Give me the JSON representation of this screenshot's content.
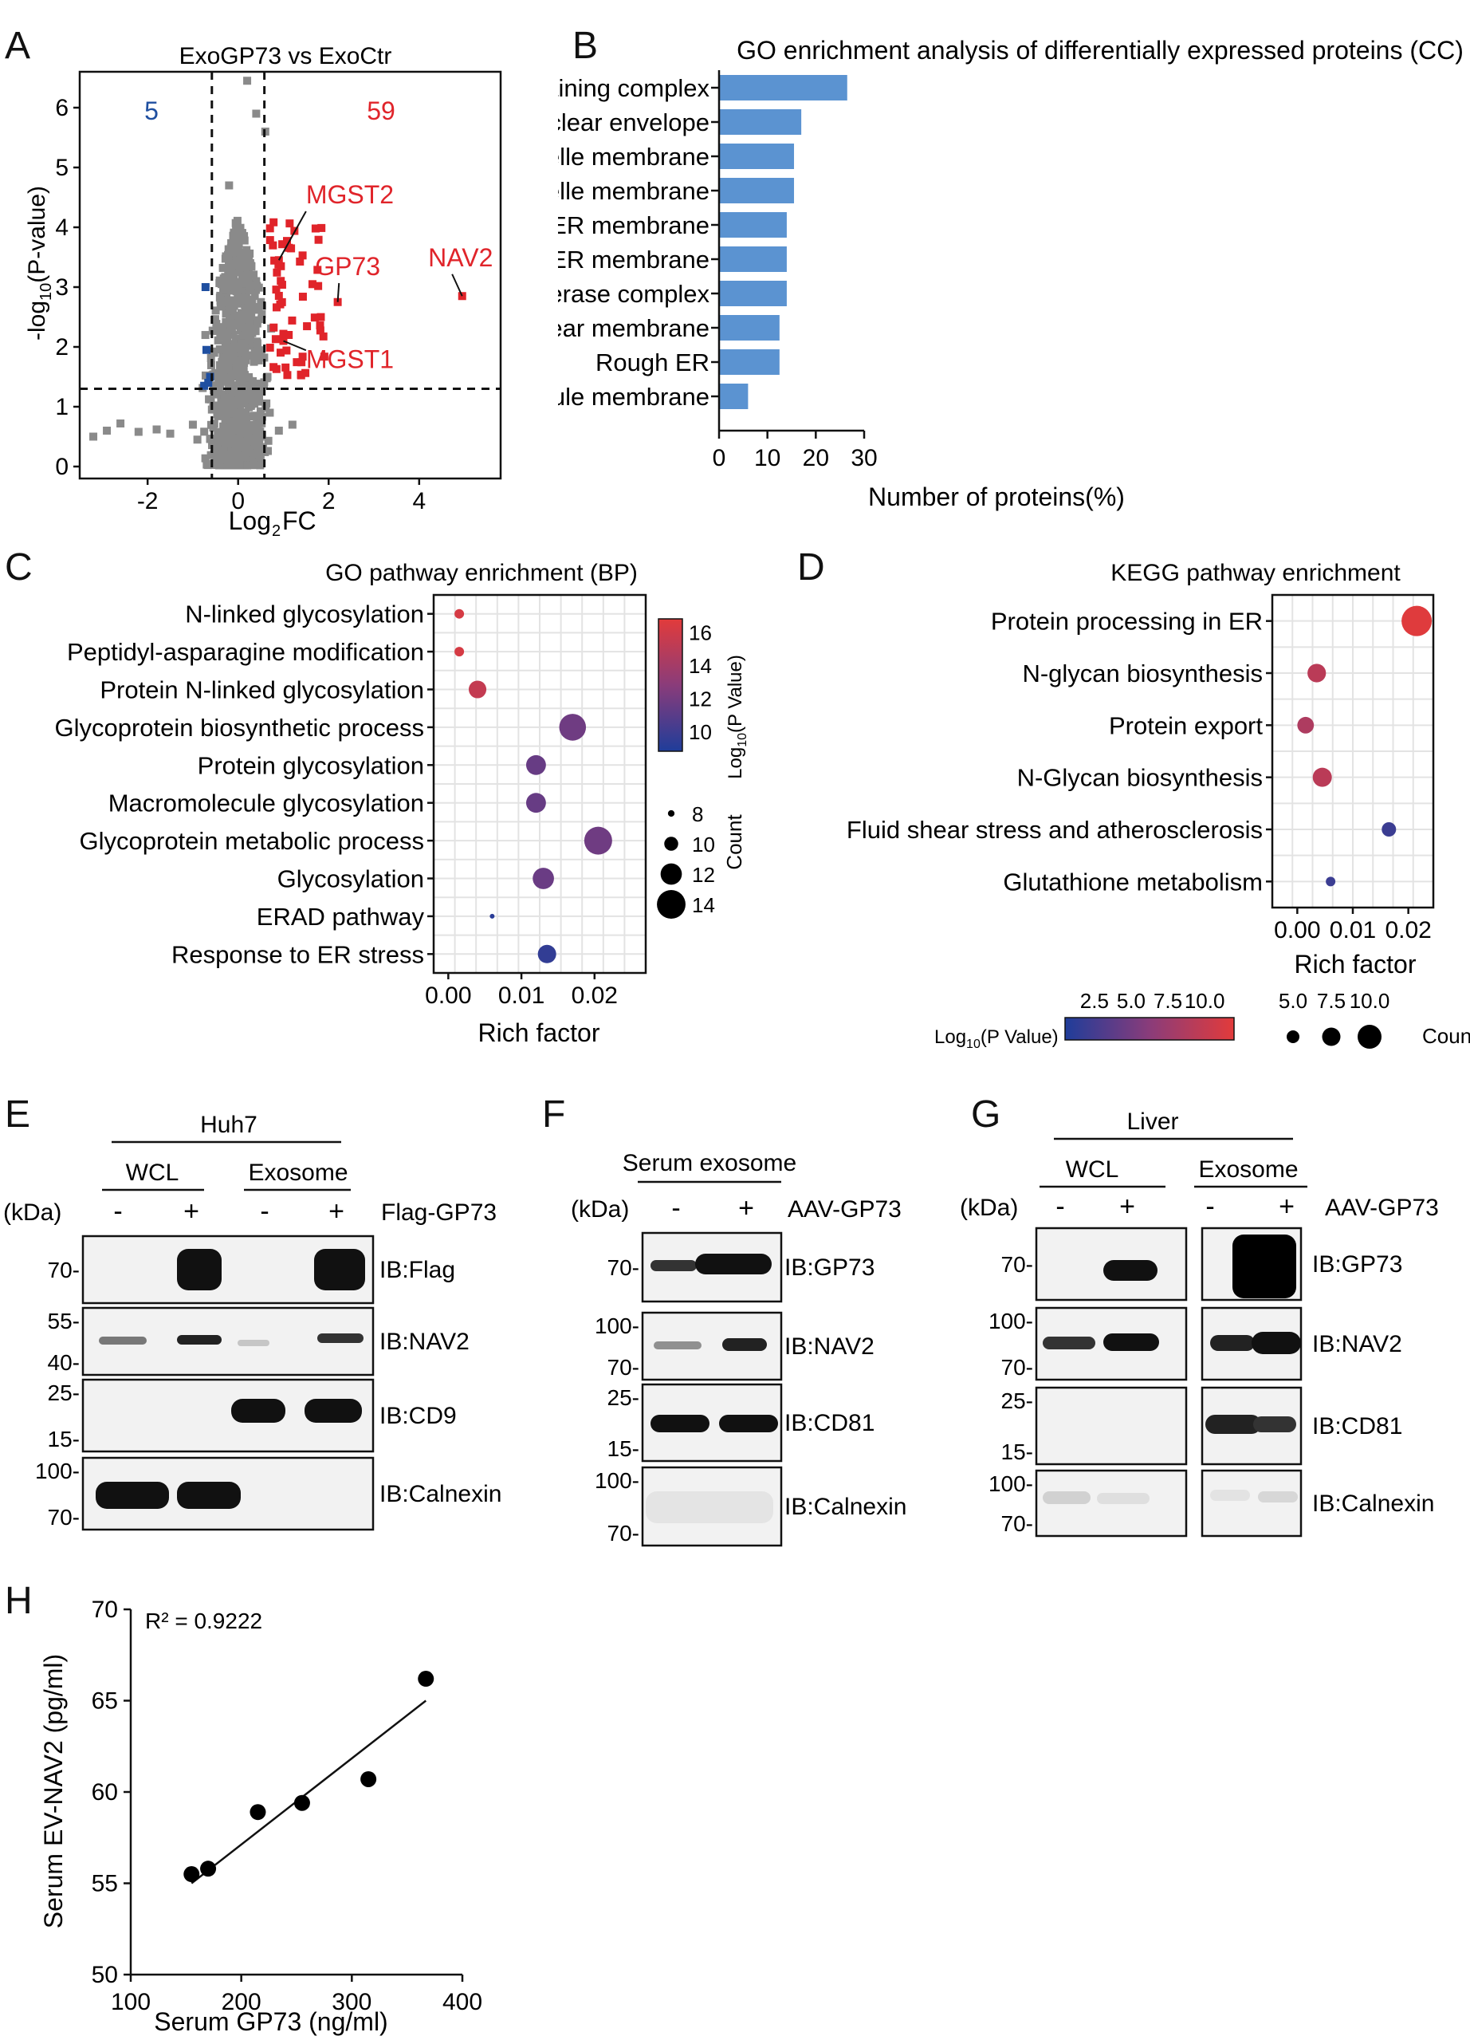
{
  "panel_labels": [
    "A",
    "B",
    "C",
    "D",
    "E",
    "F",
    "G",
    "H"
  ],
  "colors": {
    "red": "#e0242a",
    "blue": "#1f4fa0",
    "gray": "#8a8a8a",
    "bar": "#5b93d1",
    "grad_low": "#1f3d9a",
    "grad_mid": "#8a3c7a",
    "grad_high": "#e23b3b"
  },
  "chart_data": [
    {
      "id": "A",
      "type": "scatter",
      "title": "ExoGP73 vs ExoCtr",
      "xlabel_main": "Log",
      "xlabel_sub": "2",
      "xlabel_tail": "FC",
      "ylabel_pre": "-log",
      "ylabel_sub": "10",
      "ylabel_post": "(P-value)",
      "xlim": [
        -3.5,
        5.8
      ],
      "ylim": [
        -0.2,
        6.6
      ],
      "xticks": [
        "-2",
        "0",
        "2",
        "4"
      ],
      "yticks": [
        "0",
        "1",
        "2",
        "3",
        "4",
        "5",
        "6"
      ],
      "count_down": "5",
      "count_up": "59",
      "fc_threshold": [
        -0.58,
        0.58
      ],
      "p_threshold": 1.3,
      "labels": [
        {
          "text": "MGST2",
          "x": 0.9,
          "y": 3.45,
          "tx": 1.5,
          "ty": 4.4
        },
        {
          "text": "GP73",
          "x": 2.2,
          "y": 2.75,
          "tx": 1.7,
          "ty": 3.2
        },
        {
          "text": "NAV2",
          "x": 4.95,
          "y": 2.85,
          "tx": 4.2,
          "ty": 3.35
        },
        {
          "text": "MGST1",
          "x": 1.0,
          "y": 2.1,
          "tx": 1.5,
          "ty": 1.65
        }
      ]
    },
    {
      "id": "B",
      "type": "bar",
      "title": "GO enrichment analysis of differentially expressed proteins (CC)",
      "xlabel": "Number of proteins(%)",
      "xticks": [
        "0",
        "10",
        "20",
        "30"
      ],
      "xlim": [
        0,
        30
      ],
      "categories": [
        "ER protein-containing complex",
        "Nuclear envelope",
        "Integral component of organelle membrane",
        "Intrinsic component of organelle membrane",
        "Integral component of ER membrane",
        "intrinsic component of ER membrane",
        "Oligosaccharyltransferase complex",
        "Nuclear membrane",
        "Rough ER",
        "Azurophil granule membrane"
      ],
      "values": [
        26.5,
        17.0,
        15.5,
        15.5,
        14.0,
        14.0,
        14.0,
        12.5,
        12.5,
        6.0
      ]
    },
    {
      "id": "C",
      "type": "scatter",
      "title": "GO pathway enrichment (BP)",
      "xlabel": "Rich factor",
      "xticks": [
        "0.00",
        "0.01",
        "0.02"
      ],
      "xlim": [
        -0.002,
        0.027
      ],
      "categories": [
        "N-linked glycosylation",
        "Peptidyl-asparagine modification",
        "Protein N-linked glycosylation",
        "Glycoprotein biosynthetic process",
        "Protein glycosylation",
        "Macromolecule glycosylation",
        "Glycoprotein metabolic process",
        "Glycosylation",
        "ERAD pathway",
        "Response to ER stress"
      ],
      "x": [
        0.0015,
        0.0015,
        0.004,
        0.017,
        0.012,
        0.012,
        0.0205,
        0.013,
        0.006,
        0.0135
      ],
      "count": [
        8.8,
        8.8,
        11,
        13.5,
        11.6,
        11.6,
        13.8,
        12,
        7.5,
        11.2
      ],
      "logp": [
        16.2,
        16.2,
        15.4,
        11.8,
        11.5,
        11.5,
        11.8,
        11.6,
        9.2,
        9.5
      ],
      "colorbar_label": "Log10(P Value)",
      "colorbar_ticks": [
        "16",
        "14",
        "12",
        "10"
      ],
      "colorbar_range": [
        8.8,
        16.8
      ],
      "size_label": "Count",
      "size_ticks": [
        "8",
        "10",
        "12",
        "14"
      ]
    },
    {
      "id": "D",
      "type": "scatter",
      "title": "KEGG pathway enrichment",
      "xlabel": "Rich factor",
      "xticks": [
        "0.00",
        "0.01",
        "0.02"
      ],
      "xlim": [
        -0.0045,
        0.0245
      ],
      "categories": [
        "Protein processing in ER",
        "N-glycan biosynthesis",
        "Protein export",
        "N-Glycan biosynthesis",
        "Fluid shear stress and atherosclerosis",
        "Glutathione metabolism"
      ],
      "x": [
        0.0215,
        0.0035,
        0.0015,
        0.0045,
        0.0165,
        0.006
      ],
      "count": [
        11.5,
        7.8,
        7.2,
        8,
        6.5,
        5
      ],
      "logp": [
        11.8,
        9.4,
        8.6,
        9.4,
        2.0,
        2.0
      ],
      "colorbar_label": "Log10(P Value)",
      "colorbar_ticks": [
        "2.5",
        "5.0",
        "7.5",
        "10.0"
      ],
      "colorbar_range": [
        0.5,
        12.0
      ],
      "size_label": "Count",
      "size_ticks": [
        "5.0",
        "7.5",
        "10.0"
      ]
    },
    {
      "id": "H",
      "type": "scatter",
      "r2_text": "R² = 0.9222",
      "xlabel": "Serum GP73 (ng/ml)",
      "ylabel": "Serum EV-NAV2 (pg/ml)",
      "xlim": [
        100,
        400
      ],
      "ylim": [
        50,
        70
      ],
      "xticks": [
        "100",
        "200",
        "300",
        "400"
      ],
      "yticks": [
        "50",
        "55",
        "60",
        "65",
        "70"
      ],
      "x": [
        155,
        170,
        215,
        255,
        315,
        367
      ],
      "y": [
        55.5,
        55.8,
        58.9,
        59.4,
        60.7,
        66.2
      ],
      "fit": {
        "x": [
          155,
          367
        ],
        "y": [
          55.0,
          65.0
        ]
      }
    }
  ],
  "blots": {
    "E": {
      "group": "Huh7",
      "sub1": "WCL",
      "sub2": "Exosome",
      "kda": "(kDa)",
      "signs": [
        "-",
        "+",
        "-",
        "+"
      ],
      "treatment": "Flag-GP73",
      "rows": [
        {
          "label": "IB:Flag",
          "markers": [
            "70-"
          ]
        },
        {
          "label": "IB:NAV2",
          "markers": [
            "55-",
            "40-"
          ]
        },
        {
          "label": "IB:CD9",
          "markers": [
            "25-",
            "15-"
          ]
        },
        {
          "label": "IB:Calnexin",
          "markers": [
            "100-",
            "70-"
          ]
        }
      ]
    },
    "F": {
      "group": "Serum exosome",
      "kda": "(kDa)",
      "signs": [
        "-",
        "+"
      ],
      "treatment": "AAV-GP73",
      "rows": [
        {
          "label": "IB:GP73",
          "markers": [
            "70-"
          ]
        },
        {
          "label": "IB:NAV2",
          "markers": [
            "100-",
            "70-"
          ]
        },
        {
          "label": "IB:CD81",
          "markers": [
            "25-",
            "15-"
          ]
        },
        {
          "label": "IB:Calnexin",
          "markers": [
            "100-",
            "70-"
          ]
        }
      ]
    },
    "G": {
      "group": "Liver",
      "sub1": "WCL",
      "sub2": "Exosome",
      "kda": "(kDa)",
      "signs": [
        "-",
        "+",
        "-",
        "+"
      ],
      "treatment": "AAV-GP73",
      "rows": [
        {
          "label": "IB:GP73",
          "markers": [
            "70-"
          ]
        },
        {
          "label": "IB:NAV2",
          "markers": [
            "100-",
            "70-"
          ]
        },
        {
          "label": "IB:CD81",
          "markers": [
            "25-",
            "15-"
          ]
        },
        {
          "label": "IB:Calnexin",
          "markers": [
            "100-",
            "70-"
          ]
        }
      ]
    }
  }
}
